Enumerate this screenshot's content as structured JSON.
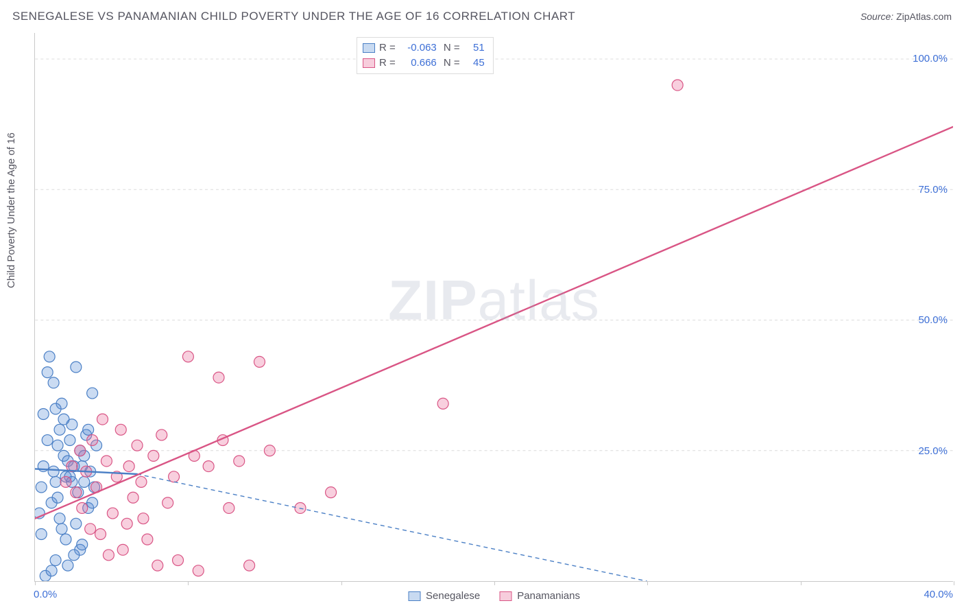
{
  "header": {
    "title": "SENEGALESE VS PANAMANIAN CHILD POVERTY UNDER THE AGE OF 16 CORRELATION CHART",
    "source_label": "Source:",
    "source_value": "ZipAtlas.com"
  },
  "watermark": {
    "bold": "ZIP",
    "rest": "atlas"
  },
  "chart": {
    "type": "scatter",
    "ylabel": "Child Poverty Under the Age of 16",
    "background_color": "#ffffff",
    "grid_color": "#dcdcdc",
    "axis_color": "#c9c9c9",
    "tick_label_color": "#3d6fd6",
    "axis_label_color": "#555560",
    "xlim": [
      0,
      45
    ],
    "ylim": [
      0,
      105
    ],
    "ytick_positions": [
      25,
      50,
      75,
      100
    ],
    "ytick_labels": [
      "25.0%",
      "50.0%",
      "75.0%",
      "100.0%"
    ],
    "xtick_positions": [
      0,
      7.5,
      15,
      22.5,
      30,
      37.5,
      45
    ],
    "x_left_label": "0.0%",
    "x_right_label": "40.0%",
    "marker_radius": 8,
    "marker_fill_opacity": 0.32,
    "marker_stroke_width": 1.2,
    "line_width_solid": 2.4,
    "line_width_dash": 1.4,
    "dash_pattern": "6,5",
    "series": [
      {
        "key": "senegalese",
        "label": "Senegalese",
        "color": "#5b8fd6",
        "stroke": "#4a7fc5",
        "r_value": "-0.063",
        "n_value": "51",
        "trend_solid": {
          "x1": 0,
          "y1": 21.5,
          "x2": 5,
          "y2": 20.5
        },
        "trend_dash": {
          "x1": 5,
          "y1": 20.5,
          "x2": 30,
          "y2": 0
        },
        "points": [
          [
            0.3,
            18
          ],
          [
            0.4,
            22
          ],
          [
            0.5,
            1
          ],
          [
            0.6,
            40
          ],
          [
            0.7,
            43
          ],
          [
            0.8,
            15
          ],
          [
            0.9,
            21
          ],
          [
            1.0,
            19
          ],
          [
            1.0,
            4
          ],
          [
            1.1,
            26
          ],
          [
            1.2,
            29
          ],
          [
            1.2,
            12
          ],
          [
            1.3,
            34
          ],
          [
            1.4,
            24
          ],
          [
            1.5,
            20
          ],
          [
            1.5,
            8
          ],
          [
            1.6,
            3
          ],
          [
            1.7,
            27
          ],
          [
            1.8,
            30
          ],
          [
            1.9,
            22
          ],
          [
            2.0,
            41
          ],
          [
            2.1,
            17
          ],
          [
            2.2,
            6
          ],
          [
            2.3,
            7
          ],
          [
            2.4,
            19
          ],
          [
            2.5,
            28
          ],
          [
            2.6,
            14
          ],
          [
            2.8,
            36
          ],
          [
            0.4,
            32
          ],
          [
            0.9,
            38
          ],
          [
            1.1,
            16
          ],
          [
            1.3,
            10
          ],
          [
            1.6,
            23
          ],
          [
            1.9,
            5
          ],
          [
            2.2,
            25
          ],
          [
            2.7,
            21
          ],
          [
            2.9,
            18
          ],
          [
            3.0,
            26
          ],
          [
            0.2,
            13
          ],
          [
            0.3,
            9
          ],
          [
            0.8,
            2
          ],
          [
            1.4,
            31
          ],
          [
            1.7,
            20
          ],
          [
            2.0,
            11
          ],
          [
            2.4,
            24
          ],
          [
            2.8,
            15
          ],
          [
            0.6,
            27
          ],
          [
            1.0,
            33
          ],
          [
            1.8,
            19
          ],
          [
            2.3,
            22
          ],
          [
            2.6,
            29
          ]
        ]
      },
      {
        "key": "panamanians",
        "label": "Panamanians",
        "color": "#e86a97",
        "stroke": "#d95585",
        "r_value": "0.666",
        "n_value": "45",
        "trend_solid": {
          "x1": 0,
          "y1": 12,
          "x2": 45,
          "y2": 87
        },
        "trend_dash": null,
        "points": [
          [
            1.5,
            19
          ],
          [
            2.0,
            17
          ],
          [
            2.2,
            25
          ],
          [
            2.5,
            21
          ],
          [
            2.8,
            27
          ],
          [
            3.0,
            18
          ],
          [
            3.2,
            9
          ],
          [
            3.5,
            23
          ],
          [
            3.8,
            13
          ],
          [
            4.0,
            20
          ],
          [
            4.2,
            29
          ],
          [
            4.5,
            11
          ],
          [
            4.8,
            16
          ],
          [
            5.0,
            26
          ],
          [
            5.5,
            8
          ],
          [
            5.8,
            24
          ],
          [
            6.0,
            3
          ],
          [
            6.5,
            15
          ],
          [
            7.0,
            4
          ],
          [
            7.5,
            43
          ],
          [
            8.0,
            2
          ],
          [
            8.5,
            22
          ],
          [
            9.0,
            39
          ],
          [
            9.5,
            14
          ],
          [
            10.0,
            23
          ],
          [
            10.5,
            3
          ],
          [
            11.0,
            42
          ],
          [
            11.5,
            25
          ],
          [
            13.0,
            14
          ],
          [
            14.5,
            17
          ],
          [
            20.0,
            34
          ],
          [
            31.5,
            95
          ],
          [
            3.3,
            31
          ],
          [
            4.3,
            6
          ],
          [
            5.3,
            12
          ],
          [
            6.2,
            28
          ],
          [
            6.8,
            20
          ],
          [
            2.7,
            10
          ],
          [
            3.6,
            5
          ],
          [
            1.8,
            22
          ],
          [
            2.3,
            14
          ],
          [
            4.6,
            22
          ],
          [
            5.2,
            19
          ],
          [
            7.8,
            24
          ],
          [
            9.2,
            27
          ]
        ]
      }
    ]
  },
  "legend": {
    "item1": "Senegalese",
    "item2": "Panamanians"
  }
}
